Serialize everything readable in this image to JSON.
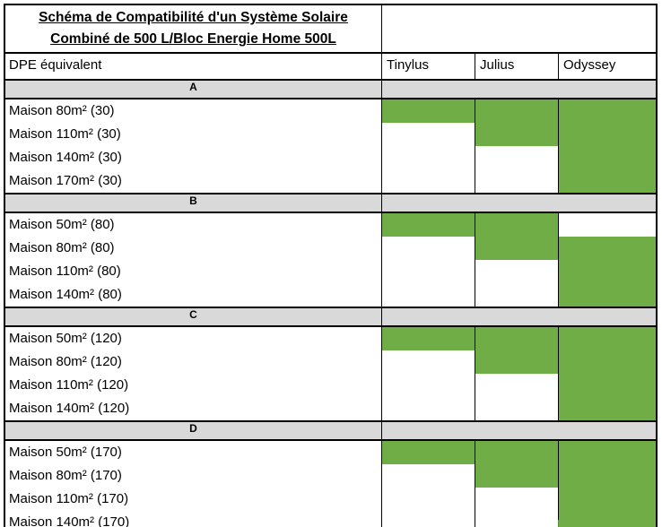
{
  "title": {
    "line1": "Schéma de Compatibilité d'un Système Solaire",
    "line2": "Combiné de 500 L/Bloc Energie Home 500L"
  },
  "header": {
    "dpe_label": "DPE équivalent",
    "products": [
      "Tinylus",
      "Julius",
      "Odyssey"
    ]
  },
  "colors": {
    "compatible_green": "#70ad47",
    "section_band_gray": "#d9d9d9",
    "border": "#000000",
    "background": "#ffffff"
  },
  "sections": [
    {
      "label": "A",
      "rows": [
        {
          "label": "Maison 80m² (30)",
          "cells": [
            true,
            true,
            true
          ]
        },
        {
          "label": "Maison 110m² (30)",
          "cells": [
            false,
            true,
            true
          ]
        },
        {
          "label": "Maison 140m² (30)",
          "cells": [
            false,
            false,
            true
          ]
        },
        {
          "label": "Maison 170m² (30)",
          "cells": [
            false,
            false,
            true
          ]
        }
      ]
    },
    {
      "label": "B",
      "rows": [
        {
          "label": "Maison 50m² (80)",
          "cells": [
            true,
            true,
            false
          ]
        },
        {
          "label": "Maison 80m² (80)",
          "cells": [
            false,
            true,
            true
          ]
        },
        {
          "label": "Maison 110m² (80)",
          "cells": [
            false,
            false,
            true
          ]
        },
        {
          "label": "Maison 140m² (80)",
          "cells": [
            false,
            false,
            true
          ]
        }
      ]
    },
    {
      "label": "C",
      "rows": [
        {
          "label": "Maison 50m² (120)",
          "cells": [
            true,
            true,
            true
          ]
        },
        {
          "label": "Maison 80m² (120)",
          "cells": [
            false,
            true,
            true
          ]
        },
        {
          "label": "Maison 110m² (120)",
          "cells": [
            false,
            false,
            true
          ]
        },
        {
          "label": "Maison 140m² (120)",
          "cells": [
            false,
            false,
            true
          ]
        }
      ]
    },
    {
      "label": "D",
      "rows": [
        {
          "label": "Maison 50m² (170)",
          "cells": [
            true,
            true,
            true
          ]
        },
        {
          "label": "Maison 80m² (170)",
          "cells": [
            false,
            true,
            true
          ]
        },
        {
          "label": "Maison 110m² (170)",
          "cells": [
            false,
            false,
            true
          ]
        },
        {
          "label": "Maison 140m² (170)",
          "cells": [
            false,
            false,
            true
          ]
        }
      ]
    }
  ]
}
